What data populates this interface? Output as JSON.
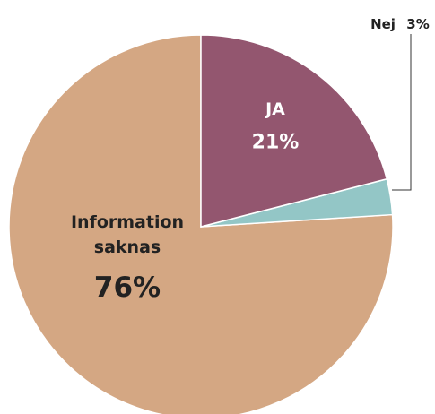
{
  "chart_data": {
    "type": "pie",
    "categories": [
      "JA",
      "Nej",
      "Information saknas"
    ],
    "values": [
      21,
      3,
      76
    ],
    "value_labels": [
      "21%",
      "3%",
      "76%"
    ],
    "colors": [
      "#93566f",
      "#93c6c6",
      "#d4a783"
    ]
  }
}
